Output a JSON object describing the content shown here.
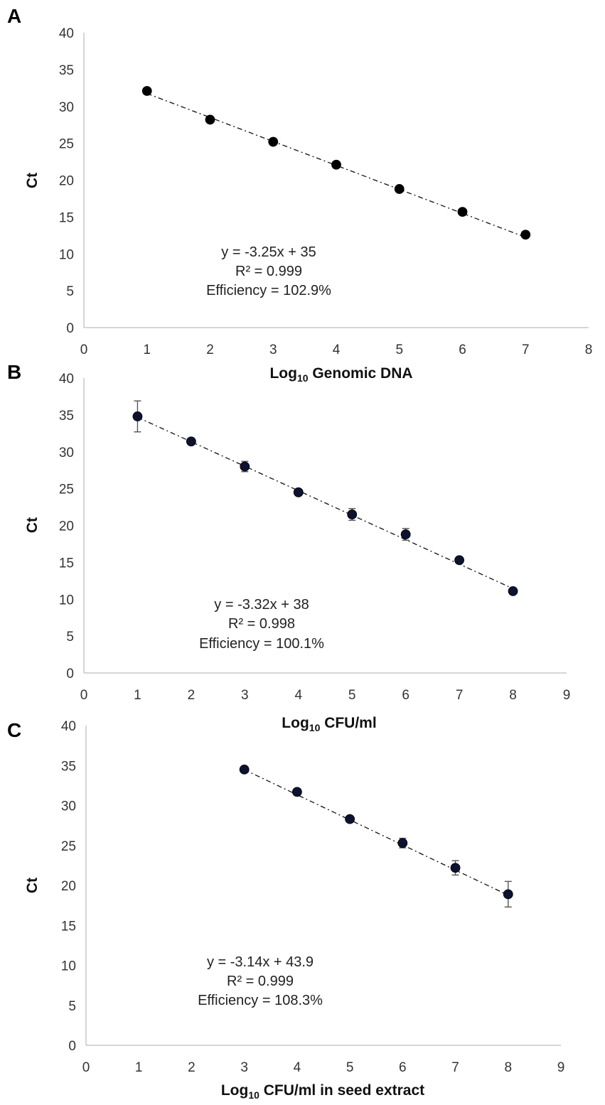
{
  "chart_data": [
    {
      "panel": "A",
      "type": "scatter",
      "xlabel": "Log",
      "xlabel_sub": "10",
      "xlabel_rest": " Genomic DNA",
      "ylabel": "Ct",
      "xlim": [
        0,
        8
      ],
      "ylim": [
        0,
        40
      ],
      "xticks": [
        0,
        1,
        2,
        3,
        4,
        5,
        6,
        7,
        8
      ],
      "yticks": [
        0,
        5,
        10,
        15,
        20,
        25,
        30,
        35,
        40
      ],
      "x": [
        1,
        2,
        3,
        4,
        5,
        6,
        7
      ],
      "y": [
        32.1,
        28.2,
        25.2,
        22.1,
        18.8,
        15.7,
        12.6
      ],
      "err": [
        0,
        0,
        0,
        0,
        0,
        0,
        0
      ],
      "trendline": {
        "slope": -3.25,
        "intercept": 35,
        "style": "dash-dot"
      },
      "annotations": [
        "y = -3.25x + 35",
        "R² = 0.999",
        "Efficiency = 102.9%"
      ],
      "marker_color": "#000000"
    },
    {
      "panel": "B",
      "type": "scatter",
      "xlabel": "Log",
      "xlabel_sub": "10",
      "xlabel_rest": " CFU/ml",
      "ylabel": "Ct",
      "xlim": [
        0,
        9
      ],
      "ylim": [
        0,
        40
      ],
      "xticks": [
        0,
        1,
        2,
        3,
        4,
        5,
        6,
        7,
        8,
        9
      ],
      "yticks": [
        0,
        5,
        10,
        15,
        20,
        25,
        30,
        35,
        40
      ],
      "x": [
        1,
        2,
        3,
        4,
        5,
        6,
        7,
        8
      ],
      "y": [
        34.8,
        31.4,
        28.0,
        24.5,
        21.5,
        18.8,
        15.3,
        11.1
      ],
      "err": [
        2.1,
        0.4,
        0.7,
        0.4,
        0.8,
        0.8,
        0.4,
        0.3
      ],
      "trendline": {
        "slope": -3.32,
        "intercept": 38,
        "style": "dash-dot"
      },
      "annotations": [
        "y = -3.32x + 38",
        "R² = 0.998",
        "Efficiency =  100.1%"
      ],
      "marker_color": "#0d1230"
    },
    {
      "panel": "C",
      "type": "scatter",
      "xlabel": "Log",
      "xlabel_sub": "10",
      "xlabel_rest": " CFU/ml  in seed extract",
      "ylabel": "Ct",
      "xlim": [
        0,
        9
      ],
      "ylim": [
        0,
        40
      ],
      "xticks": [
        0,
        1,
        2,
        3,
        4,
        5,
        6,
        7,
        8,
        9
      ],
      "yticks": [
        0,
        5,
        10,
        15,
        20,
        25,
        30,
        35,
        40
      ],
      "x": [
        3,
        4,
        5,
        6,
        7,
        8
      ],
      "y": [
        34.5,
        31.7,
        28.3,
        25.3,
        22.2,
        18.9
      ],
      "err": [
        0.3,
        0.3,
        0.3,
        0.6,
        0.9,
        1.6
      ],
      "trendline": {
        "slope": -3.14,
        "intercept": 43.9,
        "style": "dash-dot"
      },
      "annotations": [
        "y = -3.14x + 43.9",
        "R² = 0.999",
        "Efficiency = 108.3%"
      ],
      "marker_color": "#0d1230"
    }
  ]
}
